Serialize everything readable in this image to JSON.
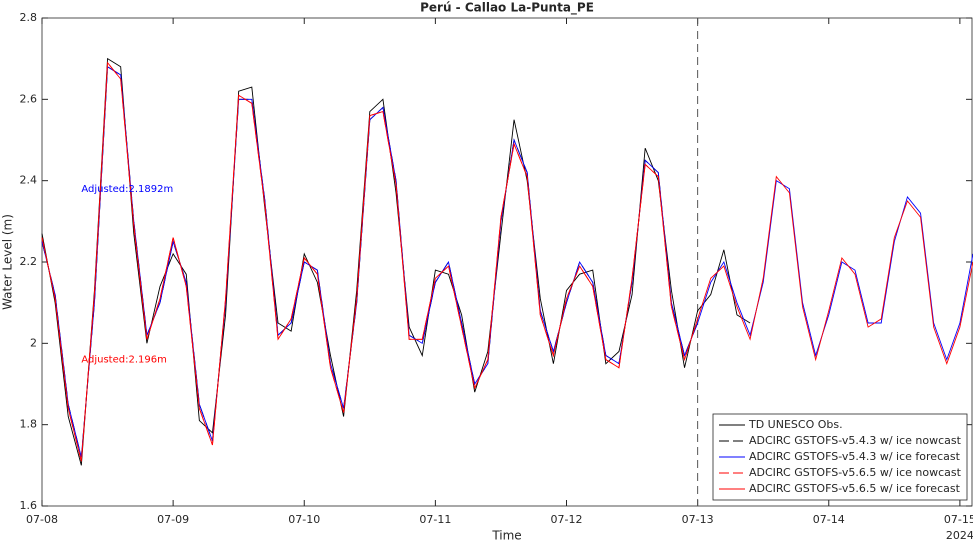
{
  "chart_data": {
    "type": "line",
    "title": "Perú - Callao La-Punta_PE",
    "x_label": "Time",
    "y_label": "Water Level (m)",
    "year_label": "2024",
    "xlim": [
      0,
      7.1
    ],
    "ylim": [
      1.6,
      2.8
    ],
    "xticks": [
      {
        "value": 0,
        "label": "07-08"
      },
      {
        "value": 1,
        "label": "07-09"
      },
      {
        "value": 2,
        "label": "07-10"
      },
      {
        "value": 3,
        "label": "07-11"
      },
      {
        "value": 4,
        "label": "07-12"
      },
      {
        "value": 5,
        "label": "07-13"
      },
      {
        "value": 6,
        "label": "07-14"
      },
      {
        "value": 7,
        "label": "07-15"
      }
    ],
    "yticks": [
      1.6,
      1.8,
      2,
      2.2,
      2.4,
      2.6,
      2.8
    ],
    "vline_x": 5,
    "annotations": [
      {
        "text": "Adjusted:2.1892m",
        "x": 0.3,
        "y": 2.38,
        "color": "#0000ff"
      },
      {
        "text": "Adjusted:2.196m",
        "x": 0.3,
        "y": 1.96,
        "color": "#ff0000"
      }
    ],
    "legend": "lower right",
    "x": [
      0,
      0.1,
      0.2,
      0.3,
      0.4,
      0.5,
      0.6,
      0.7,
      0.8,
      0.9,
      1,
      1.1,
      1.2,
      1.3,
      1.4,
      1.5,
      1.6,
      1.7,
      1.8,
      1.9,
      2,
      2.1,
      2.2,
      2.3,
      2.4,
      2.5,
      2.6,
      2.7,
      2.8,
      2.9,
      3,
      3.1,
      3.2,
      3.3,
      3.4,
      3.5,
      3.6,
      3.7,
      3.8,
      3.9,
      4,
      4.1,
      4.2,
      4.3,
      4.4,
      4.5,
      4.6,
      4.7,
      4.8,
      4.9,
      5,
      5.1,
      5.2,
      5.3,
      5.4,
      5.5,
      5.6,
      5.7,
      5.8,
      5.9,
      6,
      6.1,
      6.2,
      6.3,
      6.4,
      6.5,
      6.6,
      6.7,
      6.8,
      6.9,
      7,
      7.1
    ],
    "series": [
      {
        "name": "TD UNESCO Obs.",
        "color": "#000000",
        "dashed": false,
        "values": [
          2.27,
          2.1,
          1.82,
          1.7,
          2.13,
          2.7,
          2.68,
          2.27,
          2.0,
          2.14,
          2.22,
          2.17,
          1.81,
          1.78,
          2.07,
          2.62,
          2.63,
          2.33,
          2.05,
          2.03,
          2.22,
          2.15,
          1.97,
          1.82,
          2.13,
          2.57,
          2.6,
          2.37,
          2.04,
          1.97,
          2.18,
          2.17,
          2.07,
          1.88,
          1.98,
          2.27,
          2.55,
          2.4,
          2.11,
          1.95,
          2.13,
          2.17,
          2.18,
          1.95,
          1.98,
          2.12,
          2.48,
          2.4,
          2.13,
          1.94,
          2.08,
          2.12,
          2.23,
          2.07,
          2.05,
          null,
          null,
          null,
          null,
          null,
          null,
          null,
          null,
          null,
          null,
          null,
          null,
          null,
          null,
          null,
          null,
          null
        ]
      },
      {
        "name": "ADCIRC GSTOFS-v5.4.3  w/ ice nowcast",
        "color": "#000000",
        "dashed": true,
        "values": [
          2.25,
          2.12,
          1.85,
          1.72,
          2.1,
          2.68,
          2.66,
          2.3,
          2.02,
          2.1,
          2.25,
          2.15,
          1.85,
          1.76,
          2.1,
          2.6,
          2.6,
          2.35,
          2.02,
          2.05,
          2.2,
          2.18,
          1.95,
          1.84,
          2.1,
          2.55,
          2.58,
          2.4,
          2.02,
          2.0,
          2.15,
          2.2,
          2.05,
          1.9,
          1.95,
          2.3,
          2.5,
          2.42,
          2.08,
          1.98,
          2.1,
          2.2,
          2.15,
          1.97,
          1.95,
          2.15,
          2.45,
          2.42,
          2.1,
          1.97,
          2.05,
          null,
          null,
          null,
          null,
          null,
          null,
          null,
          null,
          null,
          null,
          null,
          null,
          null,
          null,
          null,
          null,
          null,
          null,
          null,
          null,
          null
        ]
      },
      {
        "name": "ADCIRC GSTOFS-v5.4.3  w/ ice forecast",
        "color": "#0000ff",
        "dashed": false,
        "values": [
          2.25,
          2.12,
          1.85,
          1.72,
          2.1,
          2.68,
          2.66,
          2.3,
          2.02,
          2.1,
          2.25,
          2.15,
          1.85,
          1.76,
          2.1,
          2.6,
          2.6,
          2.35,
          2.02,
          2.05,
          2.2,
          2.18,
          1.95,
          1.84,
          2.1,
          2.55,
          2.58,
          2.4,
          2.02,
          2.0,
          2.15,
          2.2,
          2.05,
          1.9,
          1.95,
          2.3,
          2.5,
          2.42,
          2.08,
          1.98,
          2.1,
          2.2,
          2.15,
          1.97,
          1.95,
          2.15,
          2.45,
          2.42,
          2.1,
          1.97,
          2.05,
          2.15,
          2.2,
          2.1,
          2.02,
          2.15,
          2.4,
          2.38,
          2.1,
          1.97,
          2.07,
          2.2,
          2.18,
          2.05,
          2.05,
          2.25,
          2.36,
          2.32,
          2.05,
          1.96,
          2.05,
          2.22
        ]
      },
      {
        "name": "ADCIRC GSTOFS-v5.6.5  w/ ice nowcast",
        "color": "#ff0000",
        "dashed": true,
        "values": [
          2.26,
          2.11,
          1.84,
          1.71,
          2.12,
          2.69,
          2.65,
          2.29,
          2.01,
          2.11,
          2.26,
          2.14,
          1.84,
          1.75,
          2.11,
          2.61,
          2.59,
          2.34,
          2.01,
          2.06,
          2.21,
          2.17,
          1.94,
          1.83,
          2.11,
          2.56,
          2.57,
          2.39,
          2.01,
          2.01,
          2.16,
          2.19,
          2.04,
          1.89,
          1.96,
          2.31,
          2.49,
          2.41,
          2.07,
          1.97,
          2.11,
          2.19,
          2.14,
          1.96,
          1.94,
          2.16,
          2.44,
          2.41,
          2.09,
          1.96,
          2.06,
          null,
          null,
          null,
          null,
          null,
          null,
          null,
          null,
          null,
          null,
          null,
          null,
          null,
          null,
          null,
          null,
          null,
          null,
          null,
          null,
          null
        ]
      },
      {
        "name": "ADCIRC GSTOFS-v5.6.5  w/ ice forecast",
        "color": "#ff0000",
        "dashed": false,
        "values": [
          2.26,
          2.11,
          1.84,
          1.71,
          2.12,
          2.69,
          2.65,
          2.29,
          2.01,
          2.11,
          2.26,
          2.14,
          1.84,
          1.75,
          2.11,
          2.61,
          2.59,
          2.34,
          2.01,
          2.06,
          2.21,
          2.17,
          1.94,
          1.83,
          2.11,
          2.56,
          2.57,
          2.39,
          2.01,
          2.01,
          2.16,
          2.19,
          2.04,
          1.89,
          1.96,
          2.31,
          2.49,
          2.41,
          2.07,
          1.97,
          2.11,
          2.19,
          2.14,
          1.96,
          1.94,
          2.16,
          2.44,
          2.41,
          2.09,
          1.96,
          2.06,
          2.16,
          2.19,
          2.09,
          2.01,
          2.16,
          2.41,
          2.37,
          2.09,
          1.96,
          2.08,
          2.21,
          2.17,
          2.04,
          2.06,
          2.26,
          2.35,
          2.31,
          2.04,
          1.95,
          2.04,
          2.2
        ]
      }
    ]
  }
}
